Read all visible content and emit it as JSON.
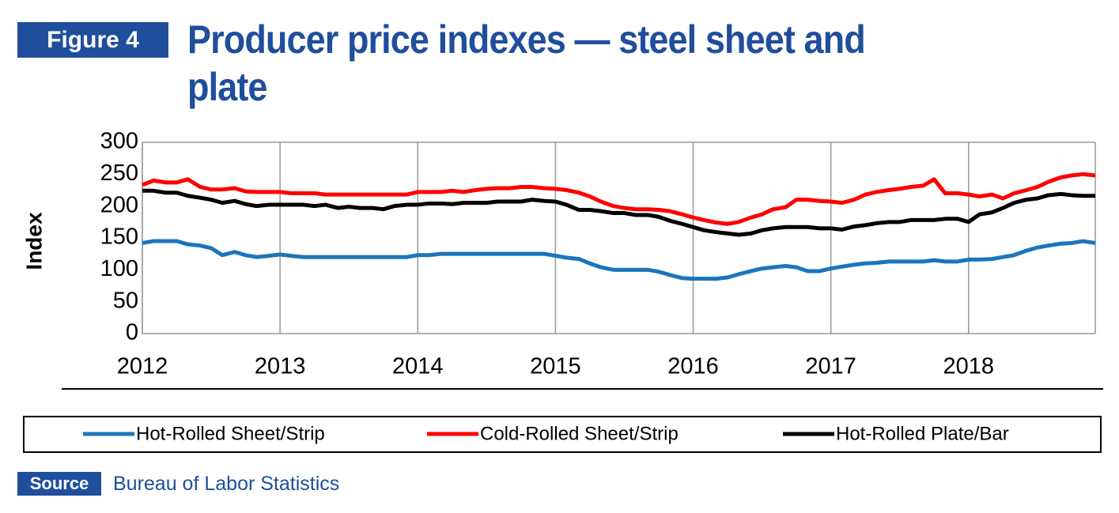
{
  "figure_label": "Figure 4",
  "title": "Producer price indexes — steel sheet and plate",
  "source_label": "Source",
  "source": "Bureau of Labor Statistics",
  "chart_data": {
    "type": "line",
    "ylabel": "Index",
    "x": [
      2012,
      2012.08,
      2012.17,
      2012.25,
      2012.33,
      2012.42,
      2012.5,
      2012.58,
      2012.67,
      2012.75,
      2012.83,
      2012.92,
      2013,
      2013.08,
      2013.17,
      2013.25,
      2013.33,
      2013.42,
      2013.5,
      2013.58,
      2013.67,
      2013.75,
      2013.83,
      2013.92,
      2014,
      2014.08,
      2014.17,
      2014.25,
      2014.33,
      2014.42,
      2014.5,
      2014.58,
      2014.67,
      2014.75,
      2014.83,
      2014.92,
      2015,
      2015.08,
      2015.17,
      2015.25,
      2015.33,
      2015.42,
      2015.5,
      2015.58,
      2015.67,
      2015.75,
      2015.83,
      2015.92,
      2016,
      2016.08,
      2016.17,
      2016.25,
      2016.33,
      2016.42,
      2016.5,
      2016.58,
      2016.67,
      2016.75,
      2016.83,
      2016.92,
      2017,
      2017.08,
      2017.17,
      2017.25,
      2017.33,
      2017.42,
      2017.5,
      2017.58,
      2017.67,
      2017.75,
      2017.83,
      2017.92,
      2018,
      2018.08,
      2018.17,
      2018.25,
      2018.33,
      2018.42,
      2018.5,
      2018.58,
      2018.67,
      2018.75,
      2018.83,
      2018.92
    ],
    "series": [
      {
        "name": "Hot-Rolled Sheet/Strip",
        "color": "#1b75bc",
        "values": [
          142,
          145,
          145,
          145,
          140,
          138,
          134,
          123,
          128,
          123,
          120,
          122,
          124,
          122,
          120,
          120,
          120,
          120,
          120,
          120,
          120,
          120,
          120,
          120,
          123,
          123,
          125,
          125,
          125,
          125,
          125,
          125,
          125,
          125,
          125,
          125,
          122,
          119,
          117,
          110,
          104,
          100,
          100,
          100,
          100,
          97,
          92,
          87,
          86,
          86,
          86,
          88,
          93,
          98,
          102,
          104,
          106,
          104,
          98,
          98,
          102,
          105,
          108,
          110,
          111,
          113,
          113,
          113,
          113,
          115,
          113,
          113,
          116,
          116,
          117,
          120,
          123,
          130,
          135,
          138,
          141,
          142,
          145,
          142
        ]
      },
      {
        "name": "Cold-Rolled Sheet/Strip",
        "color": "#ff0000",
        "values": [
          233,
          240,
          237,
          237,
          242,
          230,
          226,
          226,
          228,
          223,
          222,
          222,
          222,
          220,
          220,
          220,
          218,
          218,
          218,
          218,
          218,
          218,
          218,
          218,
          222,
          222,
          222,
          224,
          222,
          225,
          227,
          228,
          228,
          230,
          230,
          228,
          227,
          225,
          221,
          215,
          207,
          200,
          197,
          195,
          195,
          194,
          192,
          187,
          182,
          178,
          174,
          172,
          175,
          182,
          187,
          195,
          198,
          210,
          210,
          208,
          207,
          205,
          210,
          218,
          222,
          225,
          227,
          230,
          232,
          242,
          220,
          220,
          218,
          215,
          218,
          212,
          220,
          225,
          230,
          238,
          245,
          248,
          250,
          248
        ]
      },
      {
        "name": "Hot-Rolled Plate/Bar",
        "color": "#000000",
        "values": [
          224,
          224,
          221,
          221,
          216,
          213,
          210,
          205,
          208,
          203,
          200,
          202,
          202,
          202,
          202,
          200,
          202,
          197,
          199,
          197,
          197,
          195,
          200,
          202,
          202,
          204,
          204,
          203,
          205,
          205,
          205,
          207,
          207,
          207,
          210,
          208,
          207,
          202,
          194,
          194,
          192,
          189,
          189,
          186,
          186,
          183,
          177,
          172,
          167,
          162,
          159,
          157,
          155,
          157,
          162,
          165,
          167,
          167,
          167,
          165,
          165,
          163,
          168,
          170,
          173,
          175,
          175,
          178,
          178,
          178,
          180,
          180,
          175,
          187,
          190,
          197,
          205,
          210,
          212,
          217,
          219,
          217,
          216,
          216
        ]
      }
    ],
    "xlim": [
      2012,
      2018.92
    ],
    "ylim": [
      0,
      300
    ],
    "xticks": [
      2012,
      2013,
      2014,
      2015,
      2016,
      2017,
      2018
    ],
    "yticks": [
      0,
      50,
      100,
      150,
      200,
      250,
      300
    ],
    "grid": "x",
    "legend": "bottom"
  }
}
